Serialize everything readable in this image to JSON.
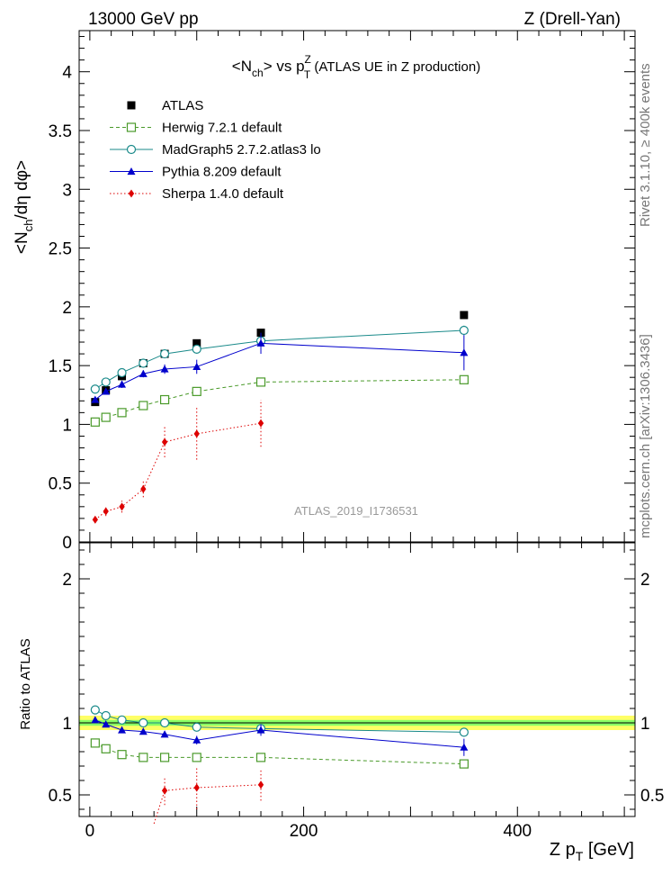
{
  "header": {
    "left": "13000 GeV pp",
    "right": "Z (Drell-Yan)"
  },
  "side_labels": {
    "rivet": "Rivet 3.1.10, ≥ 400k events",
    "mcplots": "mcplots.cern.ch [arXiv:1306.3436]"
  },
  "watermark": "ATLAS_2019_I1736531",
  "colors": {
    "atlas": "#000000",
    "herwig": "#4a9a2a",
    "madgraph": "#1a8a8a",
    "pythia": "#0000cc",
    "sherpa": "#dd0000",
    "band_outer": "#ffff66",
    "band_inner": "#88ff66"
  },
  "chart_data": [
    {
      "type": "scatter",
      "panel": "main",
      "title_main": "<N",
      "title_sub": "ch",
      "title_rest": "> vs p",
      "title_sup": "Z",
      "title_sub2": "T",
      "title_tail": " (ATLAS UE in Z production)",
      "ylabel": "<N",
      "ylabel_sub": "ch",
      "ylabel_rest": "/dη dφ>",
      "ylim": [
        0,
        4.35
      ],
      "xlim": [
        -10,
        510
      ],
      "yticks": [
        0,
        0.5,
        1,
        1.5,
        2,
        2.5,
        3,
        3.5,
        4
      ],
      "ytick_labels": [
        "0",
        "0.5",
        "1",
        "1.5",
        "2",
        "2.5",
        "3",
        "3.5",
        "4"
      ],
      "legend_position": "top-left",
      "series": [
        {
          "name": "ATLAS",
          "key": "atlas",
          "marker": "square-filled",
          "x": [
            5,
            15,
            30,
            50,
            70,
            100,
            160,
            350
          ],
          "y": [
            1.19,
            1.29,
            1.41,
            1.52,
            1.6,
            1.69,
            1.78,
            1.93
          ],
          "err": [
            0,
            0,
            0,
            0,
            0,
            0,
            0,
            0
          ]
        },
        {
          "name": "Herwig 7.2.1 default",
          "key": "herwig",
          "marker": "square-open",
          "line": "dashed",
          "x": [
            5,
            15,
            30,
            50,
            70,
            100,
            160,
            350
          ],
          "y": [
            1.02,
            1.06,
            1.1,
            1.16,
            1.21,
            1.28,
            1.36,
            1.38
          ],
          "err": [
            0.01,
            0.01,
            0.01,
            0.01,
            0.01,
            0.01,
            0.01,
            0.02
          ]
        },
        {
          "name": "MadGraph5 2.7.2.atlas3 lo",
          "key": "madgraph",
          "marker": "circle-open",
          "line": "solid",
          "x": [
            5,
            15,
            30,
            50,
            70,
            100,
            160,
            350
          ],
          "y": [
            1.3,
            1.36,
            1.44,
            1.52,
            1.6,
            1.64,
            1.71,
            1.8
          ],
          "err": [
            0.01,
            0.01,
            0.01,
            0.01,
            0.01,
            0.02,
            0.02,
            0.04
          ]
        },
        {
          "name": "Pythia 8.209 default",
          "key": "pythia",
          "marker": "triangle-filled",
          "line": "solid",
          "x": [
            5,
            15,
            30,
            50,
            70,
            100,
            160,
            350
          ],
          "y": [
            1.21,
            1.28,
            1.34,
            1.43,
            1.47,
            1.49,
            1.69,
            1.61
          ],
          "err": [
            0.02,
            0.02,
            0.03,
            0.03,
            0.04,
            0.06,
            0.09,
            0.15
          ]
        },
        {
          "name": "Sherpa 1.4.0 default",
          "key": "sherpa",
          "marker": "diamond-filled",
          "line": "dotted",
          "x": [
            5,
            15,
            30,
            50,
            70,
            100,
            160
          ],
          "y": [
            0.19,
            0.26,
            0.3,
            0.45,
            0.85,
            0.92,
            1.01
          ],
          "err": [
            0.03,
            0.04,
            0.05,
            0.07,
            0.13,
            0.22,
            0.2
          ]
        }
      ]
    },
    {
      "type": "scatter",
      "panel": "ratio",
      "ylabel": "Ratio to ATLAS",
      "xlabel": "Z p",
      "xlabel_sub": "T",
      "xlabel_rest": " [GeV]",
      "ylim": [
        0.35,
        2.25
      ],
      "xlim": [
        -10,
        510
      ],
      "yticks": [
        0.5,
        1,
        2
      ],
      "ytick_labels": [
        "0.5",
        "1",
        "2"
      ],
      "xticks": [
        0,
        200,
        400
      ],
      "xtick_labels": [
        "0",
        "200",
        "400"
      ],
      "band": {
        "outer": 0.05,
        "inner": 0.02
      },
      "series": [
        {
          "key": "herwig",
          "marker": "square-open",
          "line": "dashed",
          "x": [
            5,
            15,
            30,
            50,
            70,
            100,
            160,
            350
          ],
          "y": [
            0.86,
            0.82,
            0.78,
            0.76,
            0.76,
            0.76,
            0.76,
            0.715
          ],
          "err": [
            0,
            0,
            0,
            0,
            0,
            0,
            0,
            0
          ]
        },
        {
          "key": "madgraph",
          "marker": "circle-open",
          "line": "solid",
          "x": [
            5,
            15,
            30,
            50,
            70,
            100,
            160,
            350
          ],
          "y": [
            1.09,
            1.05,
            1.02,
            1.0,
            1.0,
            0.97,
            0.96,
            0.935
          ],
          "err": [
            0,
            0,
            0,
            0,
            0,
            0,
            0,
            0
          ]
        },
        {
          "key": "pythia",
          "marker": "triangle-filled",
          "line": "solid",
          "x": [
            5,
            15,
            30,
            50,
            70,
            100,
            160,
            350
          ],
          "y": [
            1.02,
            0.99,
            0.95,
            0.94,
            0.92,
            0.88,
            0.95,
            0.83
          ],
          "err": [
            0.01,
            0.01,
            0.02,
            0.02,
            0.02,
            0.03,
            0.04,
            0.06
          ]
        },
        {
          "key": "sherpa",
          "marker": "diamond-filled",
          "line": "dotted",
          "x": [
            70,
            100,
            160
          ],
          "y": [
            0.53,
            0.55,
            0.57
          ],
          "err": [
            0.1,
            0.15,
            0.11
          ],
          "lead_in": {
            "x": [
              60,
              70
            ],
            "y": [
              0.3,
              0.53
            ]
          }
        }
      ]
    }
  ]
}
